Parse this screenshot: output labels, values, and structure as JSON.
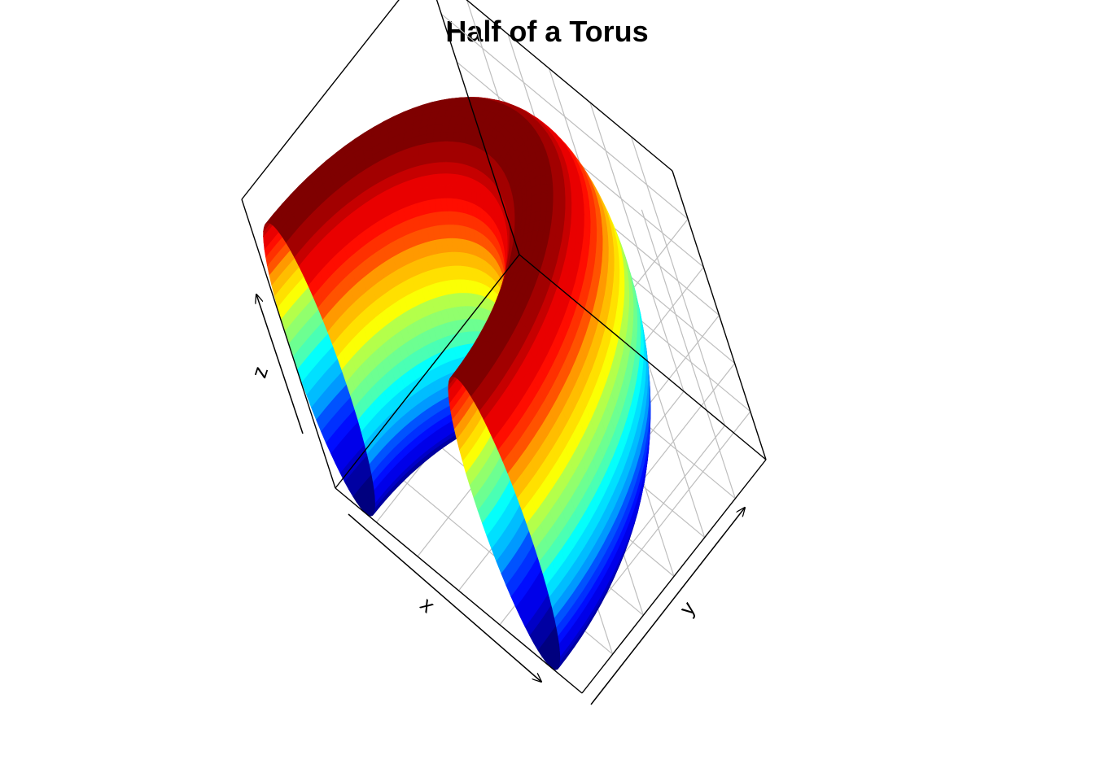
{
  "chart_data": {
    "type": "surface3d",
    "title": "Half of a Torus",
    "xlabel": "x",
    "ylabel": "y",
    "zlabel": "z",
    "surface": {
      "shape": "torus",
      "portion": "half",
      "major_radius": 3,
      "minor_radius": 1,
      "u_range_deg": [
        0,
        180
      ],
      "v_range_deg": [
        0,
        360
      ]
    },
    "color_variable": "z",
    "color_bands": 30,
    "palette": "jet",
    "palette_stops": [
      "#00007F",
      "#0000FF",
      "#007FFF",
      "#00FFFF",
      "#7FFF7F",
      "#FFFF00",
      "#FF7F00",
      "#FF0000",
      "#7F0000"
    ],
    "box": true,
    "grid_panels": [
      "back",
      "side",
      "bottom"
    ],
    "grid_color": "#BEBEBE",
    "axis_arrows": true
  }
}
